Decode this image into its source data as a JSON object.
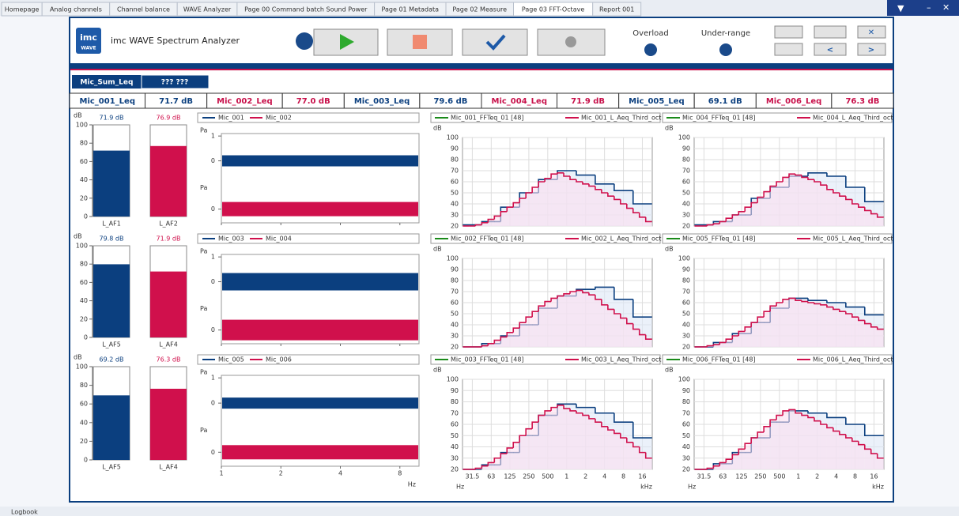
{
  "tabs": [
    "Homepage",
    "Analog channels",
    "Channel balance",
    "WAVE Analyzer",
    "Page 00 Command batch Sound Power",
    "Page 01 Metadata",
    "Page 02 Measure",
    "Page 03 FFT-Octave",
    "Report 001"
  ],
  "active_tab": 7,
  "header": {
    "title": "imc WAVE Spectrum Analyzer",
    "logo_top": "imc",
    "logo_bottom": "WAVE",
    "overload": "Overload",
    "under_range": "Under-range"
  },
  "sum": {
    "name": "Mic_Sum_Leq",
    "value": "??? ???"
  },
  "leq": [
    {
      "name": "Mic_001_Leq",
      "value": "71.7 dB",
      "color": "#0b3f7f"
    },
    {
      "name": "Mic_002_Leq",
      "value": "77.0 dB",
      "color": "#c8104a"
    },
    {
      "name": "Mic_003_Leq",
      "value": "79.6 dB",
      "color": "#0b3f7f"
    },
    {
      "name": "Mic_004_Leq",
      "value": "71.9 dB",
      "color": "#c8104a"
    },
    {
      "name": "Mic_005_Leq",
      "value": "69.1 dB",
      "color": "#0b3f7f"
    },
    {
      "name": "Mic_006_Leq",
      "value": "76.3 dB",
      "color": "#c8104a"
    }
  ],
  "meters": {
    "unit": "dB",
    "ylim": [
      0,
      100
    ],
    "yticks": [
      0,
      20,
      40,
      60,
      80,
      100
    ],
    "rows": [
      {
        "bars": [
          {
            "name": "L_AF1",
            "value": 71.9,
            "label": "71.9 dB",
            "color": "#0b3f7f"
          },
          {
            "name": "L_AF2",
            "value": 76.9,
            "label": "76.9 dB",
            "color": "#d0104c"
          }
        ]
      },
      {
        "bars": [
          {
            "name": "L_AF5",
            "value": 79.8,
            "label": "79.8 dB",
            "color": "#0b3f7f"
          },
          {
            "name": "L_AF4",
            "value": 71.9,
            "label": "71.9 dB",
            "color": "#d0104c"
          }
        ]
      },
      {
        "bars": [
          {
            "name": "L_AF5",
            "value": 69.2,
            "label": "69.2 dB",
            "color": "#0b3f7f"
          },
          {
            "name": "L_AF4",
            "value": 76.3,
            "label": "76.3 dB",
            "color": "#d0104c"
          }
        ]
      }
    ]
  },
  "time": {
    "unit": "Pa",
    "x_unit": "Hz",
    "xlim": [
      1,
      10
    ],
    "xticks": [
      1,
      2,
      4,
      8
    ],
    "upper_ylim": [
      -0.7,
      1.1
    ],
    "upper_yticks": [
      1,
      0
    ],
    "lower_ylim": [
      -0.8,
      1.8
    ],
    "lower_yticks": [
      0
    ],
    "colors": [
      "#0b3f7f",
      "#d0104c"
    ],
    "rows": [
      {
        "legend": [
          "Mic_001",
          "Mic_002"
        ]
      },
      {
        "legend": [
          "Mic_003",
          "Mic_004"
        ]
      },
      {
        "legend": [
          "Mic_005",
          "Mic_006"
        ]
      }
    ]
  },
  "spectra": {
    "unit": "dB",
    "x_unit_low": "Hz",
    "x_unit_high": "kHz",
    "ylim": [
      20,
      100
    ],
    "yticks": [
      20,
      30,
      40,
      50,
      60,
      70,
      80,
      90,
      100
    ],
    "xlim": [
      22,
      23000
    ],
    "xticks": [
      31.5,
      63,
      125,
      250,
      500,
      {
        "value": 1000,
        "label": "1"
      },
      {
        "value": 2000,
        "label": "2"
      },
      {
        "value": 4000,
        "label": "4"
      },
      {
        "value": 8000,
        "label": "8"
      },
      {
        "value": 16000,
        "label": "16"
      }
    ],
    "fft_color": "#1a8a1a",
    "octave_color": "#0b3f7f",
    "third_color": "#d0104c",
    "panels": [
      {
        "fft_legend": "Mic_001_FFTeq_01 [48]",
        "third_legend": "Mic_001_L_Aeq_Third_oct",
        "octave": [
          21,
          24,
          37,
          50,
          62,
          70,
          66,
          58,
          52,
          40
        ],
        "third": [
          20,
          20,
          21,
          23,
          26,
          29,
          33,
          37,
          41,
          45,
          50,
          55,
          60,
          63,
          67,
          68,
          65,
          62,
          60,
          58,
          56,
          53,
          50,
          47,
          44,
          40,
          36,
          32,
          28,
          24
        ]
      },
      {
        "fft_legend": "Mic_004_FFTeq_01 [48]",
        "third_legend": "Mic_004_L_Aeq_Third_oct",
        "octave": [
          21,
          24,
          30,
          45,
          55,
          65,
          68,
          65,
          55,
          42
        ],
        "third": [
          20,
          20,
          21,
          22,
          24,
          27,
          30,
          33,
          37,
          41,
          46,
          51,
          56,
          60,
          64,
          67,
          66,
          64,
          62,
          60,
          57,
          53,
          50,
          47,
          44,
          40,
          37,
          34,
          31,
          28
        ]
      },
      {
        "fft_legend": "Mic_002_FFTeq_01 [48]",
        "third_legend": "Mic_002_L_Aeq_Third_oct",
        "octave": [
          20,
          23,
          30,
          40,
          55,
          66,
          72,
          74,
          63,
          47
        ],
        "third": [
          20,
          20,
          20,
          21,
          23,
          26,
          29,
          33,
          37,
          42,
          47,
          52,
          57,
          61,
          64,
          66,
          68,
          70,
          71,
          69,
          67,
          63,
          58,
          54,
          50,
          46,
          41,
          36,
          31,
          27
        ]
      },
      {
        "fft_legend": "Mic_005_FFTeq_01 [48]",
        "third_legend": "Mic_005_L_Aeq_Third_oct",
        "octave": [
          20,
          24,
          32,
          42,
          55,
          64,
          62,
          60,
          56,
          49
        ],
        "third": [
          20,
          20,
          21,
          22,
          24,
          27,
          30,
          34,
          38,
          42,
          47,
          52,
          57,
          60,
          63,
          64,
          62,
          61,
          60,
          59,
          58,
          56,
          54,
          52,
          50,
          47,
          44,
          41,
          38,
          36
        ]
      },
      {
        "fft_legend": "Mic_003_FFTeq_01 [48]",
        "third_legend": "Mic_003_L_Aeq_Third_oct",
        "octave": [
          20,
          24,
          35,
          50,
          68,
          78,
          75,
          70,
          62,
          48
        ],
        "third": [
          20,
          20,
          21,
          23,
          26,
          30,
          34,
          39,
          44,
          50,
          56,
          62,
          68,
          72,
          75,
          77,
          74,
          72,
          70,
          68,
          65,
          62,
          58,
          55,
          52,
          48,
          44,
          40,
          35,
          30
        ]
      },
      {
        "fft_legend": "Mic_006_FFTeq_01 [48]",
        "third_legend": "Mic_006_L_Aeq_Third_oct",
        "octave": [
          20,
          25,
          35,
          48,
          62,
          72,
          70,
          66,
          60,
          50
        ],
        "third": [
          20,
          20,
          21,
          23,
          26,
          29,
          33,
          38,
          43,
          48,
          53,
          58,
          64,
          68,
          72,
          73,
          70,
          68,
          66,
          63,
          60,
          57,
          54,
          51,
          48,
          45,
          42,
          38,
          34,
          30
        ]
      }
    ]
  },
  "footer": "Logbook"
}
